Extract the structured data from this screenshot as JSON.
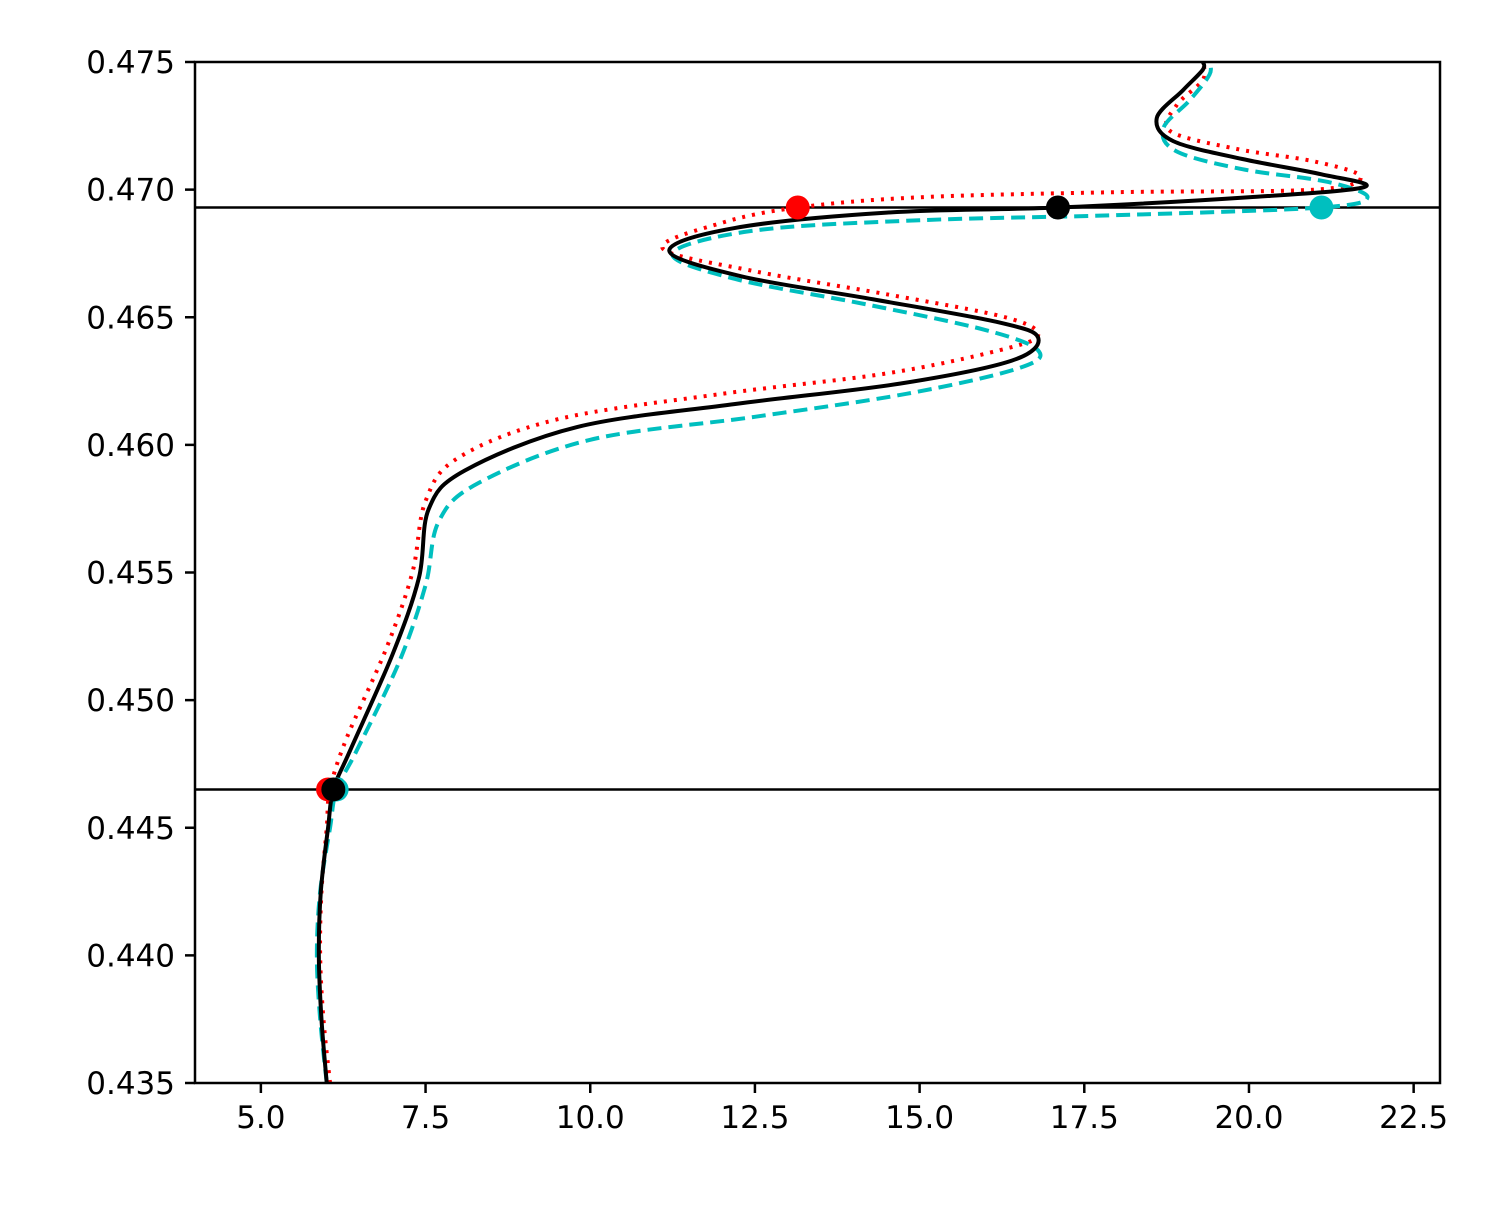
{
  "chart_data": {
    "type": "line",
    "title": "",
    "xlabel": "",
    "ylabel": "",
    "xlim": [
      4.0,
      22.9
    ],
    "ylim": [
      0.435,
      0.475
    ],
    "grid": false,
    "legend": "none",
    "x_ticks": [
      "5.0",
      "7.5",
      "10.0",
      "12.5",
      "15.0",
      "17.5",
      "20.0",
      "22.5"
    ],
    "y_ticks": [
      "0.435",
      "0.440",
      "0.445",
      "0.450",
      "0.455",
      "0.460",
      "0.465",
      "0.470",
      "0.475"
    ],
    "hlines": [
      0.4465,
      0.4693
    ],
    "series": [
      {
        "color": "#ff0000",
        "linestyle": "dotted",
        "points": [
          [
            6.05,
            0.435
          ],
          [
            5.95,
            0.4375
          ],
          [
            5.9,
            0.44
          ],
          [
            5.92,
            0.4425
          ],
          [
            6.0,
            0.445
          ],
          [
            6.05,
            0.4465
          ],
          [
            6.3,
            0.4485
          ],
          [
            6.9,
            0.452
          ],
          [
            7.3,
            0.455
          ],
          [
            7.5,
            0.4578
          ],
          [
            8.0,
            0.4595
          ],
          [
            9.5,
            0.461
          ],
          [
            12.0,
            0.462
          ],
          [
            14.5,
            0.4628
          ],
          [
            16.2,
            0.4637
          ],
          [
            16.8,
            0.4643
          ],
          [
            16.3,
            0.465
          ],
          [
            14.5,
            0.4659
          ],
          [
            12.5,
            0.4668
          ],
          [
            11.1,
            0.4677
          ],
          [
            12.0,
            0.4687
          ],
          [
            13.15,
            0.4693
          ],
          [
            15.0,
            0.4697
          ],
          [
            18.0,
            0.4699
          ],
          [
            21.0,
            0.47
          ],
          [
            21.7,
            0.4705
          ],
          [
            21.0,
            0.4711
          ],
          [
            19.8,
            0.4716
          ],
          [
            18.8,
            0.4723
          ],
          [
            18.9,
            0.4733
          ],
          [
            19.3,
            0.4743
          ],
          [
            19.3,
            0.475
          ]
        ],
        "markers": [
          [
            6.02,
            0.4465
          ],
          [
            13.15,
            0.4693
          ]
        ]
      },
      {
        "color": "#00bfbf",
        "linestyle": "dashed",
        "points": [
          [
            6.0,
            0.435
          ],
          [
            5.9,
            0.4375
          ],
          [
            5.85,
            0.44
          ],
          [
            5.9,
            0.4425
          ],
          [
            6.05,
            0.445
          ],
          [
            6.15,
            0.4465
          ],
          [
            6.45,
            0.448
          ],
          [
            7.1,
            0.4515
          ],
          [
            7.5,
            0.4545
          ],
          [
            7.7,
            0.457
          ],
          [
            8.3,
            0.4585
          ],
          [
            10.0,
            0.4602
          ],
          [
            12.5,
            0.4611
          ],
          [
            14.8,
            0.462
          ],
          [
            16.5,
            0.463
          ],
          [
            16.8,
            0.4637
          ],
          [
            16.0,
            0.4645
          ],
          [
            14.2,
            0.4655
          ],
          [
            12.2,
            0.4665
          ],
          [
            11.25,
            0.4675
          ],
          [
            12.5,
            0.4684
          ],
          [
            15.0,
            0.4688
          ],
          [
            18.0,
            0.469
          ],
          [
            21.1,
            0.4693
          ],
          [
            21.8,
            0.4697
          ],
          [
            21.2,
            0.4703
          ],
          [
            19.9,
            0.4708
          ],
          [
            18.9,
            0.4715
          ],
          [
            18.7,
            0.4724
          ],
          [
            19.1,
            0.4735
          ],
          [
            19.4,
            0.4745
          ],
          [
            19.4,
            0.475
          ]
        ],
        "markers": [
          [
            6.15,
            0.4465
          ],
          [
            21.1,
            0.4693
          ]
        ]
      },
      {
        "color": "#000000",
        "linestyle": "solid",
        "points": [
          [
            6.0,
            0.435
          ],
          [
            5.92,
            0.4375
          ],
          [
            5.88,
            0.44
          ],
          [
            5.91,
            0.4425
          ],
          [
            6.02,
            0.445
          ],
          [
            6.1,
            0.4465
          ],
          [
            6.35,
            0.448
          ],
          [
            7.0,
            0.4518
          ],
          [
            7.4,
            0.4548
          ],
          [
            7.55,
            0.4575
          ],
          [
            8.1,
            0.459
          ],
          [
            9.8,
            0.4607
          ],
          [
            12.2,
            0.4616
          ],
          [
            14.7,
            0.4624
          ],
          [
            16.4,
            0.4633
          ],
          [
            16.8,
            0.4642
          ],
          [
            16.2,
            0.4648
          ],
          [
            14.3,
            0.4657
          ],
          [
            12.3,
            0.4666
          ],
          [
            11.2,
            0.4676
          ],
          [
            12.2,
            0.4685
          ],
          [
            14.5,
            0.4691
          ],
          [
            17.1,
            0.4693
          ],
          [
            20.0,
            0.4697
          ],
          [
            21.75,
            0.4701
          ],
          [
            21.1,
            0.4706
          ],
          [
            19.9,
            0.4712
          ],
          [
            18.85,
            0.4719
          ],
          [
            18.6,
            0.4728
          ],
          [
            19.0,
            0.4739
          ],
          [
            19.3,
            0.4747
          ],
          [
            19.3,
            0.475
          ]
        ],
        "markers": [
          [
            6.1,
            0.4465
          ],
          [
            17.1,
            0.4693
          ]
        ]
      }
    ]
  }
}
